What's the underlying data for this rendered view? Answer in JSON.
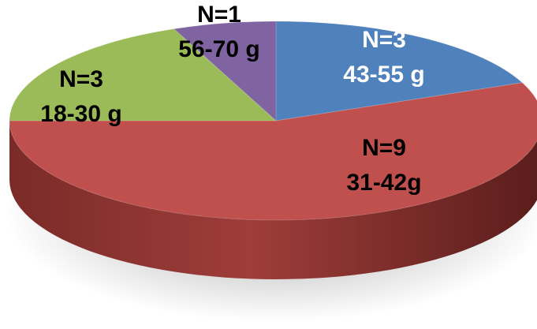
{
  "chart_data": {
    "type": "pie",
    "title": "",
    "slices": [
      {
        "n_label": "N=3",
        "range_label": "43-55 g",
        "value": 3,
        "color": "#4f81bd",
        "label_color": "#ffffff"
      },
      {
        "n_label": "N=9",
        "range_label": "31-42g",
        "value": 9,
        "color": "#c0504d",
        "label_color": "#000000"
      },
      {
        "n_label": "N=3",
        "range_label": "18-30 g",
        "value": 3,
        "color": "#9bbb59",
        "label_color": "#000000"
      },
      {
        "n_label": "N=1",
        "range_label": "56-70 g",
        "value": 1,
        "color": "#8064a2",
        "label_color": "#000000"
      }
    ],
    "legend": "none",
    "style": "3d-tilted"
  }
}
